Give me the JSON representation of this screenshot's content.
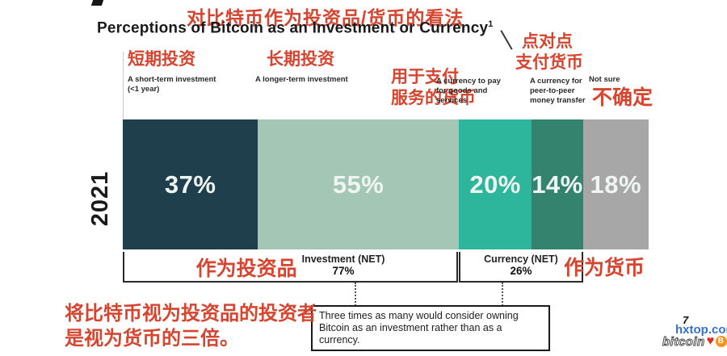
{
  "title": {
    "red_annotation": "对比特币作为投资品/货币的看法",
    "text": "Perceptions of Bitcoin as an Investment or Currency",
    "superscript": "1"
  },
  "year_label": "2021",
  "columns": [
    {
      "red_lines": [
        "短期投资"
      ],
      "en": "A short-term investment (<1 year)"
    },
    {
      "red_lines": [
        "长期投资"
      ],
      "en": "A longer-term investment"
    },
    {
      "red_lines": [
        "用于支付",
        "服务的货币"
      ],
      "en": "A currency to pay for goods and services"
    },
    {
      "red_lines": [
        "点对点",
        "支付货币"
      ],
      "en": "A currency for peer-to-peer money transfer"
    },
    {
      "red_lines": [
        "不确定"
      ],
      "en": "Not sure"
    }
  ],
  "chart_data": {
    "type": "bar",
    "subtype": "horizontal-stacked",
    "row_label": "2021",
    "categories": [
      "A short-term investment (<1 year)",
      "A longer-term investment",
      "A currency to pay for goods and services",
      "A currency for peer-to-peer money transfer",
      "Not sure"
    ],
    "values": [
      37,
      55,
      20,
      14,
      18
    ],
    "labels": [
      "37%",
      "55%",
      "20%",
      "14%",
      "18%"
    ],
    "colors": [
      "#1f3f4d",
      "#a4c6b5",
      "#2db69b",
      "#33836f",
      "#a7a7a7"
    ],
    "nets": [
      {
        "label": "Investment (NET)",
        "value": "77%",
        "red_annotation": "作为投资品"
      },
      {
        "label": "Currency (NET)",
        "value": "26%",
        "red_annotation": "作为货币"
      }
    ],
    "title": "Perceptions of Bitcoin as an Investment or Currency"
  },
  "callout": {
    "line1": "Three times as many would consider owning",
    "line2": "Bitcoin as an investment rather than as a currency."
  },
  "bottom_red_note": {
    "line1": "将比特币视为投资品的投资者",
    "line2": "是视为货币的三倍。"
  },
  "watermark": {
    "page_mark": "7",
    "site": "hxtop.com",
    "brand": "bitcoin",
    "heart": "♥",
    "coin_glyph": "B",
    "accent_blue": "#3672c8",
    "accent_orange": "#f7931a"
  },
  "annotation_red_color": "#d6452f"
}
